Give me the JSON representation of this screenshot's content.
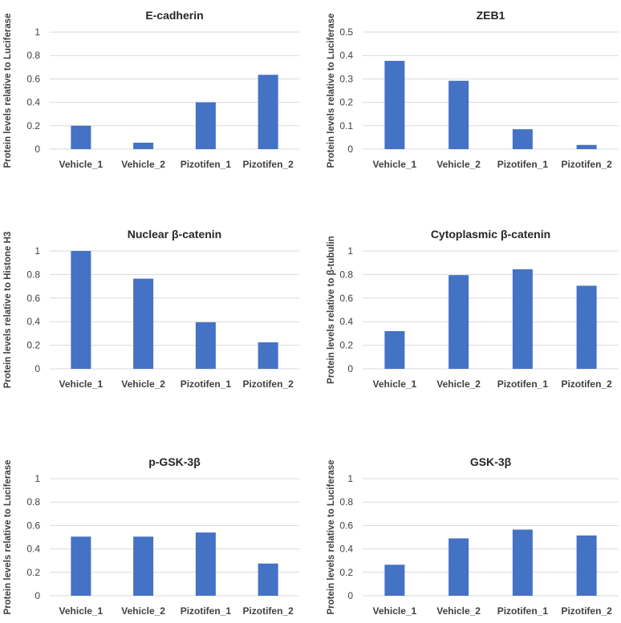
{
  "colors": {
    "bar": "#4472C4",
    "grid": "#D9D9D9",
    "text": "#404040",
    "title": "#262626"
  },
  "chart_data": [
    {
      "type": "bar",
      "title": "E-cadherin",
      "ylabel": "Protein levels relative to Luciferase",
      "categories": [
        "Vehicle_1",
        "Vehicle_2",
        "Pizotifen_1",
        "Pizotifen_2"
      ],
      "values": [
        0.2,
        0.055,
        0.4,
        0.635
      ],
      "ylim": [
        0,
        1
      ],
      "yticks": [
        0,
        0.2,
        0.4,
        0.6,
        0.8,
        1
      ],
      "ytick_labels": [
        "0",
        "0.2",
        "0.4",
        "0.6",
        "0.8",
        "1"
      ],
      "grid": true
    },
    {
      "type": "bar",
      "title": "ZEB1",
      "ylabel": "Protein levels relative to Luciferase",
      "categories": [
        "Vehicle_1",
        "Vehicle_2",
        "Pizotifen_1",
        "Pizotifen_2"
      ],
      "values": [
        0.377,
        0.292,
        0.085,
        0.018
      ],
      "ylim": [
        0,
        0.5
      ],
      "yticks": [
        0,
        0.1,
        0.2,
        0.3,
        0.4,
        0.5
      ],
      "ytick_labels": [
        "0",
        "0.1",
        "0.2",
        "0.3",
        "0.4",
        "0.5"
      ],
      "grid": true
    },
    {
      "type": "bar",
      "title": "Nuclear β-catenin",
      "ylabel": "Protein levels relative to Histone H3",
      "categories": [
        "Vehicle_1",
        "Vehicle_2",
        "Pizotifen_1",
        "Pizotifen_2"
      ],
      "values": [
        1.0,
        0.765,
        0.395,
        0.225
      ],
      "ylim": [
        0,
        1
      ],
      "yticks": [
        0,
        0.2,
        0.4,
        0.6,
        0.8,
        1
      ],
      "ytick_labels": [
        "0",
        "0.2",
        "0.4",
        "0.6",
        "0.8",
        "1"
      ],
      "grid": true
    },
    {
      "type": "bar",
      "title": "Cytoplasmic β-catenin",
      "ylabel": "Protein levels relative to β-tubulin",
      "categories": [
        "Vehicle_1",
        "Vehicle_2",
        "Pizotifen_1",
        "Pizotifen_2"
      ],
      "values": [
        0.32,
        0.795,
        0.845,
        0.705
      ],
      "ylim": [
        0,
        1
      ],
      "yticks": [
        0,
        0.2,
        0.4,
        0.6,
        0.8,
        1
      ],
      "ytick_labels": [
        "0",
        "0.2",
        "0.4",
        "0.6",
        "0.8",
        "1"
      ],
      "grid": true
    },
    {
      "type": "bar",
      "title": "p-GSK-3β",
      "ylabel": "Protein levels relative to Luciferase",
      "categories": [
        "Vehicle_1",
        "Vehicle_2",
        "Pizotifen_1",
        "Pizotifen_2"
      ],
      "values": [
        0.505,
        0.505,
        0.54,
        0.275
      ],
      "ylim": [
        0,
        1
      ],
      "yticks": [
        0,
        0.2,
        0.4,
        0.6,
        0.8,
        1
      ],
      "ytick_labels": [
        "0",
        "0.2",
        "0.4",
        "0.6",
        "0.8",
        "1"
      ],
      "grid": true
    },
    {
      "type": "bar",
      "title": "GSK-3β",
      "ylabel": "Protein levels relative to Luciferase",
      "categories": [
        "Vehicle_1",
        "Vehicle_2",
        "Pizotifen_1",
        "Pizotifen_2"
      ],
      "values": [
        0.265,
        0.49,
        0.565,
        0.515
      ],
      "ylim": [
        0,
        1
      ],
      "yticks": [
        0,
        0.2,
        0.4,
        0.6,
        0.8,
        1
      ],
      "ytick_labels": [
        "0",
        "0.2",
        "0.4",
        "0.6",
        "0.8",
        "1"
      ],
      "grid": true
    }
  ]
}
